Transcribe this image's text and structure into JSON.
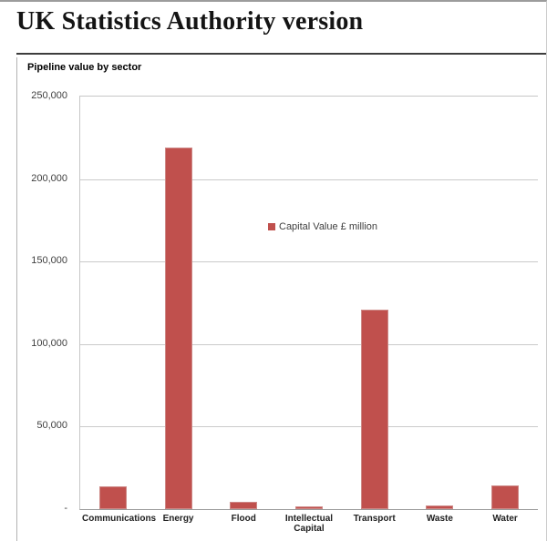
{
  "page": {
    "title": "UK Statistics Authority version"
  },
  "chart": {
    "title": "Pipeline value by sector",
    "legend_label": "Capital Value £ million",
    "colors": {
      "bar": "#C0504D",
      "bar_edge": "#CD8886",
      "gridline": "#CACACA",
      "axis_line": "#9A9A9A",
      "text": "#3F3F3F"
    },
    "y_axis": {
      "ticks": [
        {
          "label": "250,000",
          "value": 250000
        },
        {
          "label": "200,000",
          "value": 200000
        },
        {
          "label": "150,000",
          "value": 150000
        },
        {
          "label": "100,000",
          "value": 100000
        },
        {
          "label": "50,000",
          "value": 50000
        },
        {
          "label": "-",
          "value": 0
        }
      ]
    }
  },
  "chart_data": {
    "type": "bar",
    "title": "Pipeline value by sector",
    "categories": [
      "Communications",
      "Energy",
      "Flood",
      "Intellectual Capital",
      "Transport",
      "Waste",
      "Water"
    ],
    "series": [
      {
        "name": "Capital Value £ million",
        "values": [
          14000,
          219000,
          4400,
          1800,
          121000,
          2000,
          14500
        ]
      }
    ],
    "xlabel": "",
    "ylabel": "",
    "ylim": [
      0,
      250000
    ],
    "ytick_interval": 50000,
    "grid": true,
    "legend_position": "inside-center-right"
  }
}
